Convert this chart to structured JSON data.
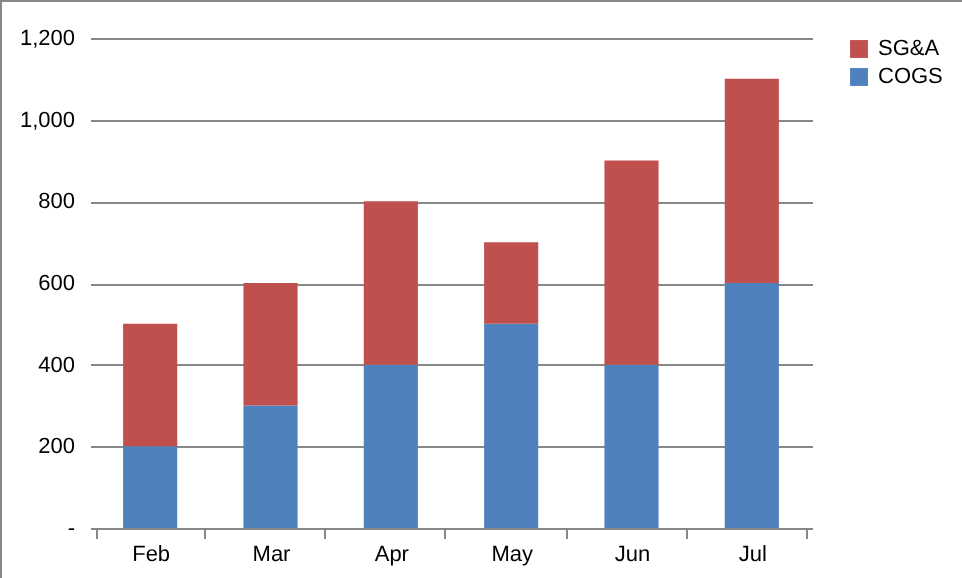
{
  "chart_data": {
    "type": "bar",
    "stacked": true,
    "categories": [
      "Feb",
      "Mar",
      "Apr",
      "May",
      "Jun",
      "Jul"
    ],
    "series": [
      {
        "name": "COGS",
        "color": "#4f81bd",
        "values": [
          200,
          300,
          400,
          500,
          400,
          600
        ]
      },
      {
        "name": "SG&A",
        "color": "#c0504d",
        "values": [
          300,
          300,
          400,
          200,
          500,
          500
        ]
      }
    ],
    "ylim": [
      0,
      1200
    ],
    "yticks": [
      {
        "value": 0,
        "label": "-"
      },
      {
        "value": 200,
        "label": "200"
      },
      {
        "value": 400,
        "label": "400"
      },
      {
        "value": 600,
        "label": "600"
      },
      {
        "value": 800,
        "label": "800"
      },
      {
        "value": 1000,
        "label": "1,000"
      },
      {
        "value": 1200,
        "label": "1,200"
      }
    ],
    "grid": "y",
    "legend": "right"
  }
}
